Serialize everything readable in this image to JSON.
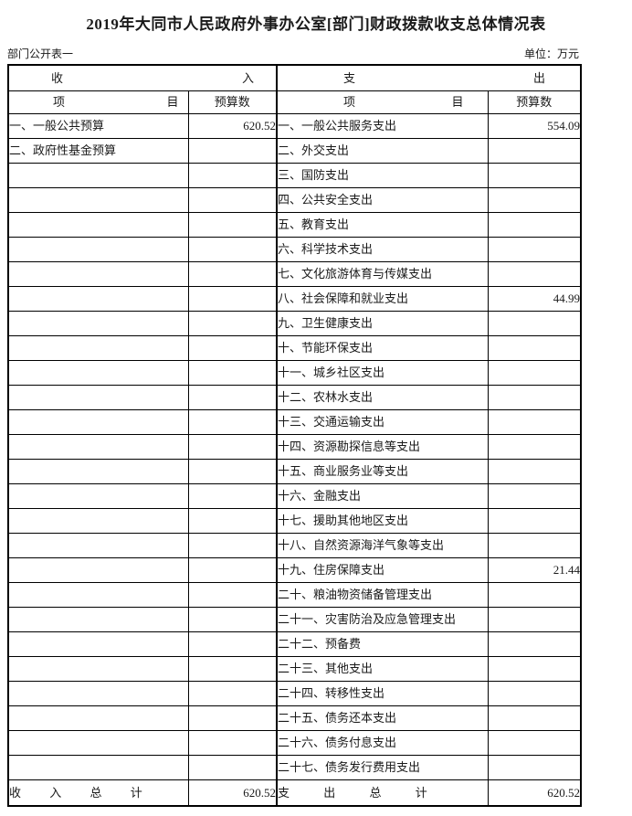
{
  "title": "2019年大同市人民政府外事办公室[部门]财政拨款收支总体情况表",
  "subheader": {
    "left": "部门公开表一",
    "right": "单位：万元"
  },
  "table": {
    "income_section": {
      "char1": "收",
      "char2": "入"
    },
    "expense_section": {
      "char1": "支",
      "char2": "出"
    },
    "item_header": {
      "char1": "项",
      "char2": "目"
    },
    "budget_header": "预算数",
    "income_rows": [
      {
        "item": "一、一般公共预算",
        "value": "620.52"
      },
      {
        "item": "二、政府性基金预算",
        "value": ""
      }
    ],
    "expense_rows": [
      {
        "item": "一、一般公共服务支出",
        "value": "554.09"
      },
      {
        "item": "二、外交支出",
        "value": ""
      },
      {
        "item": "三、国防支出",
        "value": ""
      },
      {
        "item": "四、公共安全支出",
        "value": ""
      },
      {
        "item": "五、教育支出",
        "value": ""
      },
      {
        "item": "六、科学技术支出",
        "value": ""
      },
      {
        "item": "七、文化旅游体育与传媒支出",
        "value": ""
      },
      {
        "item": "八、社会保障和就业支出",
        "value": "44.99"
      },
      {
        "item": "九、卫生健康支出",
        "value": ""
      },
      {
        "item": "十、节能环保支出",
        "value": ""
      },
      {
        "item": "十一、城乡社区支出",
        "value": ""
      },
      {
        "item": "十二、农林水支出",
        "value": ""
      },
      {
        "item": "十三、交通运输支出",
        "value": ""
      },
      {
        "item": "十四、资源勘探信息等支出",
        "value": ""
      },
      {
        "item": "十五、商业服务业等支出",
        "value": ""
      },
      {
        "item": "十六、金融支出",
        "value": ""
      },
      {
        "item": "十七、援助其他地区支出",
        "value": ""
      },
      {
        "item": "十八、自然资源海洋气象等支出",
        "value": ""
      },
      {
        "item": "十九、住房保障支出",
        "value": "21.44"
      },
      {
        "item": "二十、粮油物资储备管理支出",
        "value": ""
      },
      {
        "item": "二十一、灾害防治及应急管理支出",
        "value": ""
      },
      {
        "item": "二十二、预备费",
        "value": ""
      },
      {
        "item": "二十三、其他支出",
        "value": ""
      },
      {
        "item": "二十四、转移性支出",
        "value": ""
      },
      {
        "item": "二十五、债务还本支出",
        "value": ""
      },
      {
        "item": "二十六、债务付息支出",
        "value": ""
      },
      {
        "item": "二十七、债务发行费用支出",
        "value": ""
      }
    ],
    "totals": {
      "income_label": "收 入 总 计",
      "income_value": "620.52",
      "expense_label": "支 出 总 计",
      "expense_value": "620.52"
    }
  }
}
